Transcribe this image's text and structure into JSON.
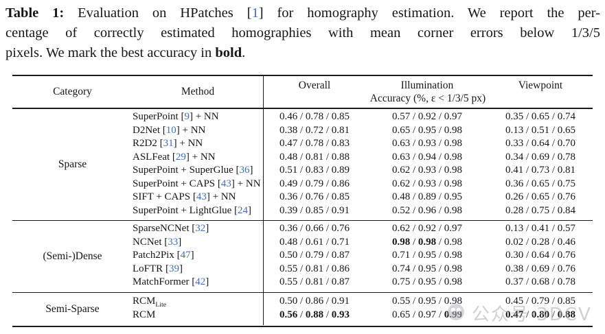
{
  "colors": {
    "cite_blue": "#3e6fbd",
    "watermark_gray": "#a9adb3",
    "rule_black": "#1a1a1a"
  },
  "caption": {
    "lines": [
      {
        "justify": true,
        "parts": [
          {
            "t": "Table 1:",
            "b": true
          },
          {
            "t": " Evaluation on HPatches "
          },
          {
            "cite": "1"
          },
          {
            "t": " for homography estimation. We report the per-"
          }
        ]
      },
      {
        "justify": true,
        "parts": [
          {
            "t": "centage of correctly estimated homographies with mean corner errors below 1/3/5"
          }
        ]
      },
      {
        "justify": false,
        "parts": [
          {
            "t": "pixels. We mark the best accuracy in "
          },
          {
            "t": "bold",
            "b": true
          },
          {
            "t": "."
          }
        ]
      }
    ]
  },
  "table": {
    "headers": {
      "category": "Category",
      "method": "Method",
      "overall": "Overall",
      "illumination": "Illumination",
      "viewpoint": "Viewpoint",
      "accuracy_note": "Accuracy (%, ε < 1/3/5 px)"
    },
    "sections": [
      {
        "category": "Sparse",
        "rows": [
          {
            "method": [
              {
                "t": "SuperPoint "
              },
              {
                "cite": "9"
              },
              {
                "t": " + NN"
              }
            ],
            "overall": {
              "v": [
                "0.46",
                "0.78",
                "0.85"
              ],
              "b": [
                false,
                false,
                false
              ]
            },
            "illumination": {
              "v": [
                "0.57",
                "0.92",
                "0.97"
              ],
              "b": [
                false,
                false,
                false
              ]
            },
            "viewpoint": {
              "v": [
                "0.35",
                "0.65",
                "0.74"
              ],
              "b": [
                false,
                false,
                false
              ]
            }
          },
          {
            "method": [
              {
                "t": "D2Net "
              },
              {
                "cite": "10"
              },
              {
                "t": " + NN"
              }
            ],
            "overall": {
              "v": [
                "0.38",
                "0.72",
                "0.81"
              ],
              "b": [
                false,
                false,
                false
              ]
            },
            "illumination": {
              "v": [
                "0.65",
                "0.95",
                "0.98"
              ],
              "b": [
                false,
                false,
                false
              ]
            },
            "viewpoint": {
              "v": [
                "0.13",
                "0.51",
                "0.65"
              ],
              "b": [
                false,
                false,
                false
              ]
            }
          },
          {
            "method": [
              {
                "t": "R2D2 "
              },
              {
                "cite": "31"
              },
              {
                "t": " + NN"
              }
            ],
            "overall": {
              "v": [
                "0.47",
                "0.78",
                "0.83"
              ],
              "b": [
                false,
                false,
                false
              ]
            },
            "illumination": {
              "v": [
                "0.63",
                "0.93",
                "0.98"
              ],
              "b": [
                false,
                false,
                false
              ]
            },
            "viewpoint": {
              "v": [
                "0.33",
                "0.64",
                "0.70"
              ],
              "b": [
                false,
                false,
                false
              ]
            }
          },
          {
            "method": [
              {
                "t": "ASLFeat "
              },
              {
                "cite": "29"
              },
              {
                "t": " + NN"
              }
            ],
            "overall": {
              "v": [
                "0.48",
                "0.81",
                "0.88"
              ],
              "b": [
                false,
                false,
                false
              ]
            },
            "illumination": {
              "v": [
                "0.63",
                "0.94",
                "0.98"
              ],
              "b": [
                false,
                false,
                false
              ]
            },
            "viewpoint": {
              "v": [
                "0.34",
                "0.69",
                "0.78"
              ],
              "b": [
                false,
                false,
                false
              ]
            }
          },
          {
            "method": [
              {
                "t": "SuperPoint + SuperGlue "
              },
              {
                "cite": "36"
              }
            ],
            "overall": {
              "v": [
                "0.51",
                "0.83",
                "0.89"
              ],
              "b": [
                false,
                false,
                false
              ]
            },
            "illumination": {
              "v": [
                "0.62",
                "0.93",
                "0.98"
              ],
              "b": [
                false,
                false,
                false
              ]
            },
            "viewpoint": {
              "v": [
                "0.41",
                "0.73",
                "0.81"
              ],
              "b": [
                false,
                false,
                false
              ]
            }
          },
          {
            "method": [
              {
                "t": "SuperPoint + CAPS "
              },
              {
                "cite": "43"
              },
              {
                "t": " + NN"
              }
            ],
            "overall": {
              "v": [
                "0.49",
                "0.79",
                "0.86"
              ],
              "b": [
                false,
                false,
                false
              ]
            },
            "illumination": {
              "v": [
                "0.62",
                "0.93",
                "0.98"
              ],
              "b": [
                false,
                false,
                false
              ]
            },
            "viewpoint": {
              "v": [
                "0.36",
                "0.65",
                "0.75"
              ],
              "b": [
                false,
                false,
                false
              ]
            }
          },
          {
            "method": [
              {
                "t": "SIFT + CAPS "
              },
              {
                "cite": "43"
              },
              {
                "t": " + NN"
              }
            ],
            "overall": {
              "v": [
                "0.36",
                "0.76",
                "0.85"
              ],
              "b": [
                false,
                false,
                false
              ]
            },
            "illumination": {
              "v": [
                "0.48",
                "0.89",
                "0.95"
              ],
              "b": [
                false,
                false,
                false
              ]
            },
            "viewpoint": {
              "v": [
                "0.26",
                "0.65",
                "0.76"
              ],
              "b": [
                false,
                false,
                false
              ]
            }
          },
          {
            "method": [
              {
                "t": "SuperPoint + LightGlue "
              },
              {
                "cite": "24"
              }
            ],
            "overall": {
              "v": [
                "0.39",
                "0.85",
                "0.91"
              ],
              "b": [
                false,
                false,
                false
              ]
            },
            "illumination": {
              "v": [
                "0.52",
                "0.96",
                "0.98"
              ],
              "b": [
                false,
                false,
                false
              ]
            },
            "viewpoint": {
              "v": [
                "0.28",
                "0.75",
                "0.84"
              ],
              "b": [
                false,
                false,
                false
              ]
            }
          }
        ]
      },
      {
        "category": "(Semi-)Dense",
        "rows": [
          {
            "method": [
              {
                "t": "SparseNCNet "
              },
              {
                "cite": "32"
              }
            ],
            "overall": {
              "v": [
                "0.36",
                "0.66",
                "0.76"
              ],
              "b": [
                false,
                false,
                false
              ]
            },
            "illumination": {
              "v": [
                "0.62",
                "0.92",
                "0.97"
              ],
              "b": [
                false,
                false,
                false
              ]
            },
            "viewpoint": {
              "v": [
                "0.13",
                "0.41",
                "0.57"
              ],
              "b": [
                false,
                false,
                false
              ]
            }
          },
          {
            "method": [
              {
                "t": "NCNet "
              },
              {
                "cite": "33"
              }
            ],
            "overall": {
              "v": [
                "0.48",
                "0.61",
                "0.71"
              ],
              "b": [
                false,
                false,
                false
              ]
            },
            "illumination": {
              "v": [
                "0.98",
                "0.98",
                "0.98"
              ],
              "b": [
                true,
                true,
                false
              ]
            },
            "viewpoint": {
              "v": [
                "0.02",
                "0.28",
                "0.46"
              ],
              "b": [
                false,
                false,
                false
              ]
            }
          },
          {
            "method": [
              {
                "t": "Patch2Pix "
              },
              {
                "cite": "47"
              }
            ],
            "overall": {
              "v": [
                "0.50",
                "0.79",
                "0.87"
              ],
              "b": [
                false,
                false,
                false
              ]
            },
            "illumination": {
              "v": [
                "0.71",
                "0.95",
                "0.98"
              ],
              "b": [
                false,
                false,
                false
              ]
            },
            "viewpoint": {
              "v": [
                "0.30",
                "0.64",
                "0.76"
              ],
              "b": [
                false,
                false,
                false
              ]
            }
          },
          {
            "method": [
              {
                "t": "LoFTR "
              },
              {
                "cite": "39"
              }
            ],
            "overall": {
              "v": [
                "0.55",
                "0.81",
                "0.86"
              ],
              "b": [
                false,
                false,
                false
              ]
            },
            "illumination": {
              "v": [
                "0.74",
                "0.95",
                "0.98"
              ],
              "b": [
                false,
                false,
                false
              ]
            },
            "viewpoint": {
              "v": [
                "0.38",
                "0.69",
                "0.76"
              ],
              "b": [
                false,
                false,
                false
              ]
            }
          },
          {
            "method": [
              {
                "t": "MatchFormer "
              },
              {
                "cite": "42"
              }
            ],
            "overall": {
              "v": [
                "0.55",
                "0.81",
                "0.87"
              ],
              "b": [
                false,
                false,
                false
              ]
            },
            "illumination": {
              "v": [
                "0.75",
                "0.95",
                "0.98"
              ],
              "b": [
                false,
                false,
                false
              ]
            },
            "viewpoint": {
              "v": [
                "0.37",
                "0.68",
                "0.78"
              ],
              "b": [
                false,
                false,
                false
              ]
            }
          }
        ]
      },
      {
        "category": "Semi-Sparse",
        "rows": [
          {
            "method": [
              {
                "t": "RCM"
              },
              {
                "sub": "Lite"
              }
            ],
            "overall": {
              "v": [
                "0.50",
                "0.86",
                "0.91"
              ],
              "b": [
                false,
                false,
                false
              ]
            },
            "illumination": {
              "v": [
                "0.55",
                "0.95",
                "0.98"
              ],
              "b": [
                false,
                false,
                false
              ]
            },
            "viewpoint": {
              "v": [
                "0.45",
                "0.79",
                "0.85"
              ],
              "b": [
                false,
                false,
                false
              ]
            }
          },
          {
            "method": [
              {
                "t": "RCM"
              }
            ],
            "overall": {
              "v": [
                "0.56",
                "0.88",
                "0.93"
              ],
              "b": [
                true,
                true,
                true
              ]
            },
            "illumination": {
              "v": [
                "0.65",
                "0.97",
                "0.99"
              ],
              "b": [
                false,
                false,
                true
              ]
            },
            "viewpoint": {
              "v": [
                "0.47",
                "0.80",
                "0.88"
              ],
              "b": [
                true,
                true,
                true
              ]
            }
          }
        ]
      }
    ]
  },
  "watermark": {
    "text": "公众号·3DCV"
  }
}
